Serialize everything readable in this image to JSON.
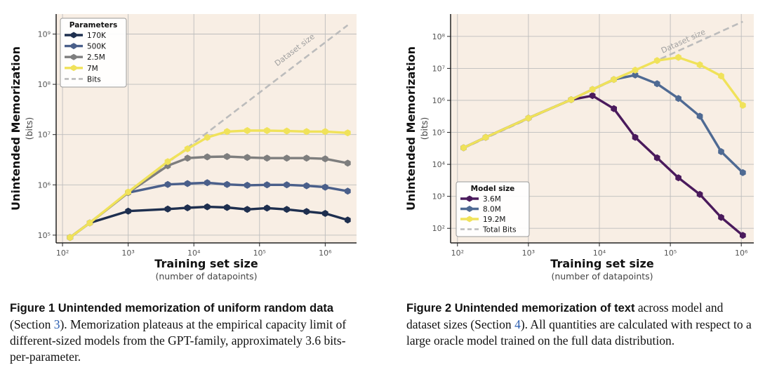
{
  "chart_data": [
    {
      "type": "line",
      "xlabel": "Training set size",
      "xlabel_sub": "(number of datapoints)",
      "ylabel": "Unintended Memorization",
      "ylabel_sub": "(bits)",
      "xscale": "log",
      "yscale": "log",
      "xlim": [
        80,
        3000000
      ],
      "ylim": [
        70000,
        2500000000
      ],
      "x_ticks": [
        {
          "value": 100,
          "label": "10²"
        },
        {
          "value": 1000,
          "label": "10³"
        },
        {
          "value": 10000,
          "label": "10⁴"
        },
        {
          "value": 100000,
          "label": "10⁵"
        },
        {
          "value": 1000000,
          "label": "10⁶"
        }
      ],
      "y_ticks": [
        {
          "value": 100000,
          "label": "10⁵"
        },
        {
          "value": 1000000,
          "label": "10⁶"
        },
        {
          "value": 10000000,
          "label": "10⁷"
        },
        {
          "value": 100000000,
          "label": "10⁸"
        },
        {
          "value": 1000000000,
          "label": "10⁹"
        }
      ],
      "grid": true,
      "legend_title": "Parameters",
      "legend_position": "top-left",
      "annotation": "Dataset size",
      "dashed_line": {
        "name": "Bits",
        "x": [
          130,
          2200000
        ],
        "y": [
          90000,
          1500000000
        ]
      },
      "series": [
        {
          "name": "170K",
          "color": "#1e2f4f",
          "x": [
            130,
            260,
            1000,
            4000,
            8000,
            16000,
            32000,
            65000,
            130000,
            260000,
            520000,
            1000000,
            2200000
          ],
          "y": [
            90000,
            175000,
            300000,
            330000,
            350000,
            365000,
            355000,
            325000,
            345000,
            325000,
            295000,
            270000,
            200000
          ]
        },
        {
          "name": "500K",
          "color": "#4a5f8a",
          "x": [
            130,
            260,
            1000,
            4000,
            8000,
            16000,
            32000,
            65000,
            130000,
            260000,
            520000,
            1000000,
            2200000
          ],
          "y": [
            90000,
            175000,
            700000,
            1020000,
            1060000,
            1100000,
            1020000,
            980000,
            1000000,
            1000000,
            960000,
            900000,
            750000
          ]
        },
        {
          "name": "2.5M",
          "color": "#7e7e7e",
          "x": [
            130,
            260,
            1000,
            4000,
            8000,
            16000,
            32000,
            65000,
            130000,
            260000,
            520000,
            1000000,
            2200000
          ],
          "y": [
            90000,
            175000,
            700000,
            2400000,
            3400000,
            3600000,
            3650000,
            3500000,
            3400000,
            3400000,
            3400000,
            3300000,
            2700000
          ]
        },
        {
          "name": "7M",
          "color": "#f0e25a",
          "x": [
            130,
            260,
            1000,
            4000,
            8000,
            16000,
            32000,
            65000,
            130000,
            260000,
            520000,
            1000000,
            2200000
          ],
          "y": [
            90000,
            175000,
            720000,
            2900000,
            5200000,
            8800000,
            11500000,
            12000000,
            12000000,
            11800000,
            11500000,
            11500000,
            10800000
          ]
        }
      ]
    },
    {
      "type": "line",
      "xlabel": "Training set size",
      "xlabel_sub": "(number of datapoints)",
      "ylabel": "Unintended Memorization",
      "ylabel_sub": "(bits)",
      "xscale": "log",
      "yscale": "log",
      "xlim": [
        80,
        1500000
      ],
      "ylim": [
        35,
        500000000
      ],
      "x_ticks": [
        {
          "value": 100,
          "label": "10²"
        },
        {
          "value": 1000,
          "label": "10³"
        },
        {
          "value": 10000,
          "label": "10⁴"
        },
        {
          "value": 100000,
          "label": "10⁵"
        },
        {
          "value": 1000000,
          "label": "10⁶"
        }
      ],
      "y_ticks": [
        {
          "value": 100,
          "label": "10²"
        },
        {
          "value": 1000,
          "label": "10³"
        },
        {
          "value": 10000,
          "label": "10⁴"
        },
        {
          "value": 100000,
          "label": "10⁵"
        },
        {
          "value": 1000000,
          "label": "10⁶"
        },
        {
          "value": 10000000,
          "label": "10⁷"
        },
        {
          "value": 100000000,
          "label": "10⁸"
        }
      ],
      "grid": true,
      "legend_title": "Model size",
      "legend_position": "bottom-left",
      "annotation": "Dataset size",
      "dashed_line": {
        "name": "Total Bits",
        "x": [
          122,
          1050000
        ],
        "y": [
          32000,
          290000000
        ]
      },
      "series": [
        {
          "name": "3.6M",
          "color": "#4a1a5c",
          "x": [
            122,
            250,
            1000,
            4000,
            8000,
            16000,
            32000,
            65000,
            130000,
            260000,
            520000,
            1050000
          ],
          "y": [
            33000,
            70000,
            280000,
            1050000,
            1400000,
            550000,
            70000,
            16000,
            3800.0,
            1150,
            220,
            60
          ]
        },
        {
          "name": "8.0M",
          "color": "#4f6a93",
          "x": [
            122,
            250,
            1000,
            4000,
            8000,
            16000,
            32000,
            65000,
            130000,
            260000,
            520000,
            1050000
          ],
          "y": [
            33000,
            70000,
            280000,
            1050000,
            2200000,
            4500000,
            6200000,
            3300000,
            1150000,
            320000,
            25000,
            5500
          ]
        },
        {
          "name": "19.2M",
          "color": "#f0e25a",
          "x": [
            122,
            250,
            1000,
            4000,
            8000,
            16000,
            32000,
            65000,
            130000,
            260000,
            520000,
            1050000
          ],
          "y": [
            33000,
            70000,
            280000,
            1050000,
            2200000,
            4500000,
            8800000,
            17500000,
            22000000,
            13000000,
            5800000,
            700000
          ]
        }
      ]
    }
  ],
  "captions": {
    "fig1": {
      "lead": "Figure 1  Unintended memorization of uniform random data",
      "pre": "(Section ",
      "ref": "3",
      "post": ").  Memorization plateaus at the empirical capacity limit of different-sized models from the GPT-family, approximately 3.6 bits-per-parameter."
    },
    "fig2": {
      "lead": "Figure 2  Unintended memorization of text",
      "pre": " across model and dataset sizes (Section ",
      "ref": "4",
      "post": "). All quantities are calculated with respect to a large oracle model trained on the full data distribution."
    }
  },
  "colors": {
    "plot_bg": "#f8eee4",
    "grid": "#bdbdbd",
    "dashed": "#bcbcbc"
  }
}
